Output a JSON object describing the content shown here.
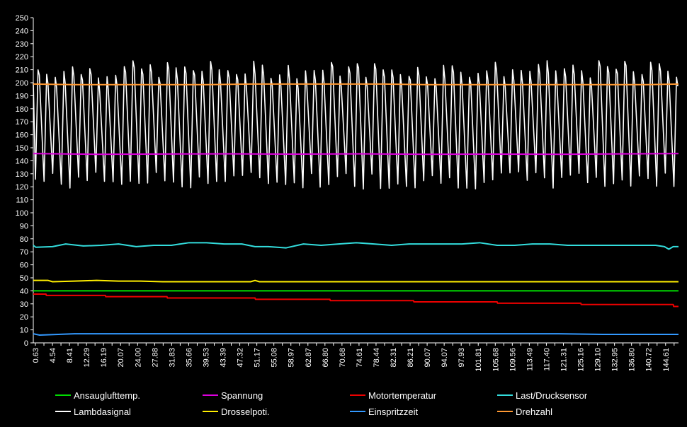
{
  "chart_data": {
    "type": "line",
    "title": "",
    "xlabel": "",
    "ylabel": "",
    "ylim": [
      0,
      250
    ],
    "yticks": [
      0,
      10,
      20,
      30,
      40,
      50,
      60,
      70,
      80,
      90,
      100,
      110,
      120,
      130,
      140,
      150,
      160,
      170,
      180,
      190,
      200,
      210,
      220,
      230,
      240,
      250
    ],
    "xticks": [
      "0.63",
      "4.54",
      "8.41",
      "12.29",
      "16.19",
      "20.07",
      "24.00",
      "27.88",
      "31.83",
      "35.66",
      "39.53",
      "43.39",
      "47.32",
      "51.17",
      "55.08",
      "58.97",
      "62.87",
      "66.80",
      "70.68",
      "74.61",
      "78.44",
      "82.31",
      "86.21",
      "90.07",
      "94.07",
      "97.93",
      "101.81",
      "105.68",
      "109.56",
      "113.49",
      "117.40",
      "121.31",
      "125.16",
      "129.10",
      "132.95",
      "136.80",
      "140.72",
      "144.61"
    ],
    "xlim": [
      0.63,
      147.2
    ],
    "grid": false,
    "legend_position": "bottom",
    "series": [
      {
        "name": "Ansauglufttemp.",
        "color": "#00dd00",
        "values": [
          [
            0.63,
            40
          ],
          [
            147.2,
            40
          ]
        ]
      },
      {
        "name": "Spannung",
        "color": "#dd00dd",
        "values": [
          [
            0.63,
            145.5
          ],
          [
            15,
            145
          ],
          [
            30,
            145.2
          ],
          [
            45,
            145.3
          ],
          [
            60,
            145.1
          ],
          [
            75,
            145.3
          ],
          [
            90,
            145
          ],
          [
            105,
            145.1
          ],
          [
            120,
            145
          ],
          [
            135,
            145.3
          ],
          [
            147.2,
            145.5
          ]
        ]
      },
      {
        "name": "Motortemperatur",
        "color": "#ee0000",
        "values": [
          [
            0.63,
            37.5
          ],
          [
            3.5,
            37.5
          ],
          [
            3.6,
            36.5
          ],
          [
            17,
            36.5
          ],
          [
            17.1,
            35.5
          ],
          [
            31,
            35.5
          ],
          [
            31.1,
            34.5
          ],
          [
            51,
            34.5
          ],
          [
            51.1,
            33.5
          ],
          [
            68,
            33.5
          ],
          [
            68.1,
            32.5
          ],
          [
            87,
            32.5
          ],
          [
            87.1,
            31.5
          ],
          [
            106,
            31.5
          ],
          [
            106.1,
            30.5
          ],
          [
            125,
            30.5
          ],
          [
            125.1,
            29.5
          ],
          [
            146,
            29.5
          ],
          [
            146.1,
            28
          ],
          [
            147.2,
            28
          ]
        ]
      },
      {
        "name": "Last/Drucksensor",
        "color": "#33dddd",
        "values": [
          [
            0.63,
            75
          ],
          [
            1.2,
            73.5
          ],
          [
            5,
            74
          ],
          [
            8,
            76
          ],
          [
            12,
            74.5
          ],
          [
            16,
            75
          ],
          [
            20,
            76
          ],
          [
            24,
            74
          ],
          [
            28,
            75
          ],
          [
            32,
            75
          ],
          [
            36,
            77
          ],
          [
            40,
            77
          ],
          [
            44,
            76
          ],
          [
            48,
            76
          ],
          [
            51,
            74
          ],
          [
            54,
            74
          ],
          [
            58,
            73
          ],
          [
            62,
            76
          ],
          [
            66,
            75
          ],
          [
            70,
            76
          ],
          [
            74,
            77
          ],
          [
            78,
            76
          ],
          [
            82,
            75
          ],
          [
            86,
            76
          ],
          [
            90,
            76
          ],
          [
            94,
            76
          ],
          [
            98,
            76
          ],
          [
            102,
            77
          ],
          [
            106,
            75
          ],
          [
            110,
            75
          ],
          [
            114,
            76
          ],
          [
            118,
            76
          ],
          [
            122,
            75
          ],
          [
            126,
            75
          ],
          [
            130,
            75
          ],
          [
            134,
            75
          ],
          [
            138,
            75
          ],
          [
            142,
            75
          ],
          [
            144,
            74
          ],
          [
            145,
            72
          ],
          [
            146,
            74
          ],
          [
            147.2,
            74
          ]
        ]
      },
      {
        "name": "Lambdasignal",
        "color": "#ffffff",
        "values": []
      },
      {
        "name": "Drosselpoti.",
        "color": "#ffee00",
        "values": [
          [
            0.63,
            48
          ],
          [
            4,
            48
          ],
          [
            5,
            47
          ],
          [
            10,
            47.5
          ],
          [
            15,
            48
          ],
          [
            20,
            47.5
          ],
          [
            25,
            47.5
          ],
          [
            30,
            47
          ],
          [
            35,
            47
          ],
          [
            40,
            47
          ],
          [
            45,
            47
          ],
          [
            50,
            47
          ],
          [
            51,
            48
          ],
          [
            52,
            47
          ],
          [
            60,
            47
          ],
          [
            80,
            47
          ],
          [
            100,
            47
          ],
          [
            120,
            47
          ],
          [
            140,
            47
          ],
          [
            147.2,
            47
          ]
        ]
      },
      {
        "name": "Einspritzzeit",
        "color": "#3399ff",
        "values": [
          [
            0.63,
            7
          ],
          [
            2,
            6
          ],
          [
            10,
            7
          ],
          [
            20,
            7
          ],
          [
            30,
            7
          ],
          [
            40,
            7
          ],
          [
            50,
            7
          ],
          [
            60,
            7
          ],
          [
            70,
            7
          ],
          [
            80,
            7
          ],
          [
            90,
            7
          ],
          [
            100,
            7
          ],
          [
            110,
            7
          ],
          [
            120,
            7
          ],
          [
            130,
            6.5
          ],
          [
            140,
            6.5
          ],
          [
            147.2,
            6.5
          ]
        ]
      },
      {
        "name": "Drehzahl",
        "color": "#ff9933",
        "values": [
          [
            0.63,
            199
          ],
          [
            10,
            198.5
          ],
          [
            20,
            198.5
          ],
          [
            30,
            198.5
          ],
          [
            40,
            198.5
          ],
          [
            50,
            199
          ],
          [
            60,
            199
          ],
          [
            70,
            199
          ],
          [
            80,
            199
          ],
          [
            90,
            198.5
          ],
          [
            100,
            198.5
          ],
          [
            110,
            198.5
          ],
          [
            120,
            198.5
          ],
          [
            130,
            198.5
          ],
          [
            140,
            198.5
          ],
          [
            147.2,
            199
          ]
        ]
      }
    ],
    "lambda_oscillation": {
      "low": 123,
      "high": 211,
      "period": 1.96
    }
  }
}
